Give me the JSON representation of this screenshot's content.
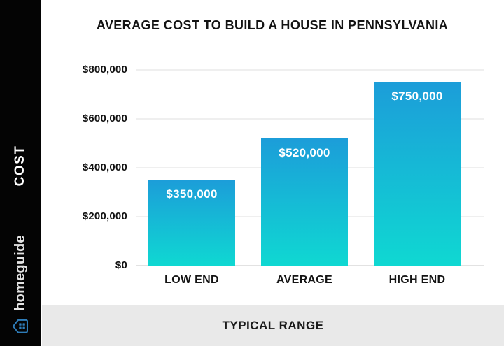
{
  "title": "AVERAGE COST TO BUILD A HOUSE IN PENNSYLVANIA",
  "sidebar": {
    "cost_label": "COST",
    "brand_name": "homeguide"
  },
  "footer_label": "TYPICAL RANGE",
  "colors": {
    "bar_gradient_top": "#1C9DD9",
    "bar_gradient_bottom": "#0FD8D2",
    "sidebar_bg": "#040404",
    "footer_bg": "#E9E9E9",
    "gridline": "#EFEFEF",
    "axis_line": "#E2E2E2",
    "bar_label_text": "#FFFFFF",
    "brand_icon_blue": "#2E7CB8"
  },
  "chart_data": {
    "type": "bar",
    "title": "AVERAGE COST TO BUILD A HOUSE IN PENNSYLVANIA",
    "categories": [
      "LOW END",
      "AVERAGE",
      "HIGH END"
    ],
    "values": [
      350000,
      520000,
      750000
    ],
    "value_labels": [
      "$350,000",
      "$520,000",
      "$750,000"
    ],
    "xlabel": "TYPICAL RANGE",
    "ylabel": "COST",
    "ylim": [
      0,
      800000
    ],
    "y_tick_values": [
      0,
      200000,
      400000,
      600000,
      800000
    ],
    "y_tick_labels": [
      "$0",
      "$200,000",
      "$400,000",
      "$600,000",
      "$800,000"
    ],
    "grid": true,
    "legend": false
  }
}
